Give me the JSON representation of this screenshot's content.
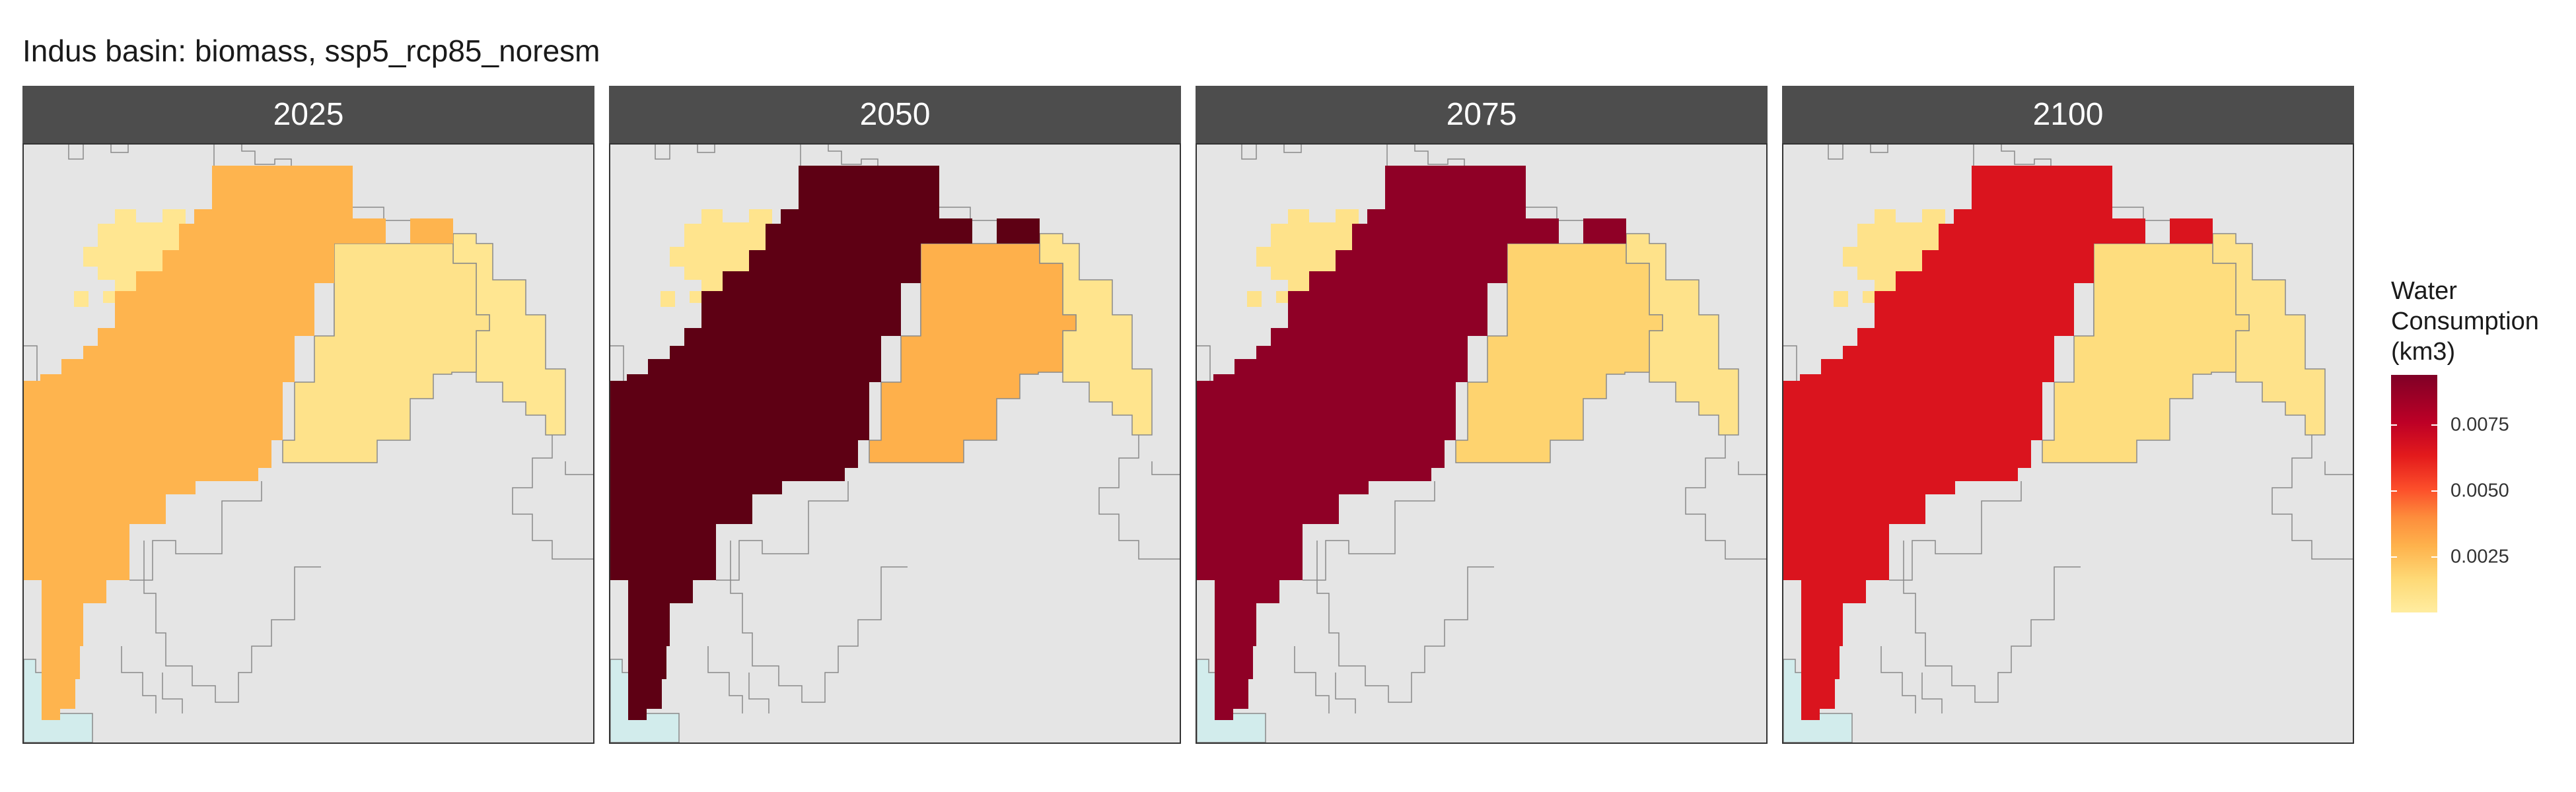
{
  "title": "Indus basin: biomass, ssp5_rcp85_noresm",
  "panels": [
    {
      "year": "2025",
      "values": {
        "west": 0.0026,
        "east": 0.001,
        "far": 0.0008
      }
    },
    {
      "year": "2050",
      "values": {
        "west": 0.0094,
        "east": 0.0027,
        "far": 0.0009
      }
    },
    {
      "year": "2075",
      "values": {
        "west": 0.008,
        "east": 0.0017,
        "far": 0.001
      }
    },
    {
      "year": "2100",
      "values": {
        "west": 0.0063,
        "east": 0.0013,
        "far": 0.001
      }
    }
  ],
  "legend": {
    "title_lines": [
      "Water",
      "Consumption",
      "(km3)"
    ],
    "ticks": [
      "0.0025",
      "0.0050",
      "0.0075"
    ],
    "tick_values": [
      0.0025,
      0.005,
      0.0075
    ],
    "range": [
      0.0004,
      0.0094
    ],
    "colors": [
      "#ffeda0",
      "#fed976",
      "#feb24c",
      "#fd8d3c",
      "#fc4e2a",
      "#e31a1c",
      "#bd0026",
      "#800026",
      "#5e0014"
    ]
  },
  "map_colors": {
    "background": "#e5e5e5",
    "border": "#8a8a8a",
    "sea": "#d2ecec"
  }
}
